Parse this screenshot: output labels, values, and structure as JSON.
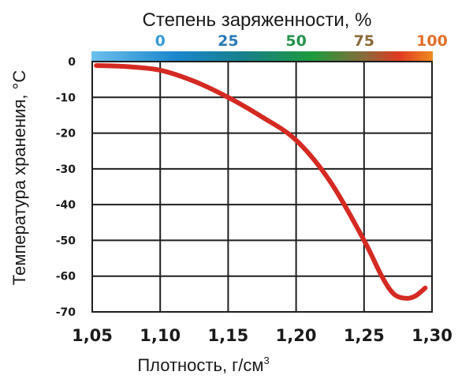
{
  "chart_data": {
    "type": "line",
    "title": "Степень заряженности, %",
    "xlabel": "Плотность, г/см³",
    "xlabel_main": "Плотность, г/см",
    "xlabel_sup": "3",
    "ylabel": "Температура хранения, °C",
    "xlim": [
      1.05,
      1.3
    ],
    "ylim": [
      -70,
      0
    ],
    "grid": true,
    "x_ticks": [
      "1,05",
      "1,10",
      "1,15",
      "1,20",
      "1,25",
      "1,30"
    ],
    "x_tick_values": [
      1.05,
      1.1,
      1.15,
      1.2,
      1.25,
      1.3
    ],
    "y_ticks": [
      "0",
      "-10",
      "-20",
      "-30",
      "-40",
      "-50",
      "-60",
      "-70"
    ],
    "y_tick_values": [
      0,
      -10,
      -20,
      -30,
      -40,
      -50,
      -60,
      -70
    ],
    "secondary_axis": {
      "label": "Степень заряженности, %",
      "ticks": [
        {
          "label": "0",
          "density": 1.1,
          "color": "#3a9ad9"
        },
        {
          "label": "25",
          "density": 1.15,
          "color": "#2a7ab8"
        },
        {
          "label": "50",
          "density": 1.2,
          "color": "#23924a"
        },
        {
          "label": "75",
          "density": 1.25,
          "color": "#8a6a3a"
        },
        {
          "label": "100",
          "density": 1.3,
          "color": "#e0702a"
        }
      ],
      "gradient_stops": [
        {
          "offset": 0.0,
          "color": "#6cc0ec"
        },
        {
          "offset": 0.25,
          "color": "#1a86cc"
        },
        {
          "offset": 0.45,
          "color": "#17808a"
        },
        {
          "offset": 0.65,
          "color": "#1f9a3c"
        },
        {
          "offset": 0.8,
          "color": "#8a6a3a"
        },
        {
          "offset": 0.9,
          "color": "#e03a20"
        },
        {
          "offset": 1.0,
          "color": "#f08a20"
        }
      ]
    },
    "series": [
      {
        "name": "Температура хранения",
        "color": "#d42a22",
        "x": [
          1.053,
          1.075,
          1.1,
          1.125,
          1.15,
          1.175,
          1.2,
          1.225,
          1.25,
          1.263,
          1.272,
          1.281,
          1.288,
          1.295
        ],
        "values": [
          -1.1,
          -1.4,
          -2.4,
          -5.5,
          -10,
          -15.5,
          -22,
          -33.5,
          -50,
          -60,
          -65,
          -66.2,
          -65.5,
          -63.3
        ]
      }
    ]
  }
}
